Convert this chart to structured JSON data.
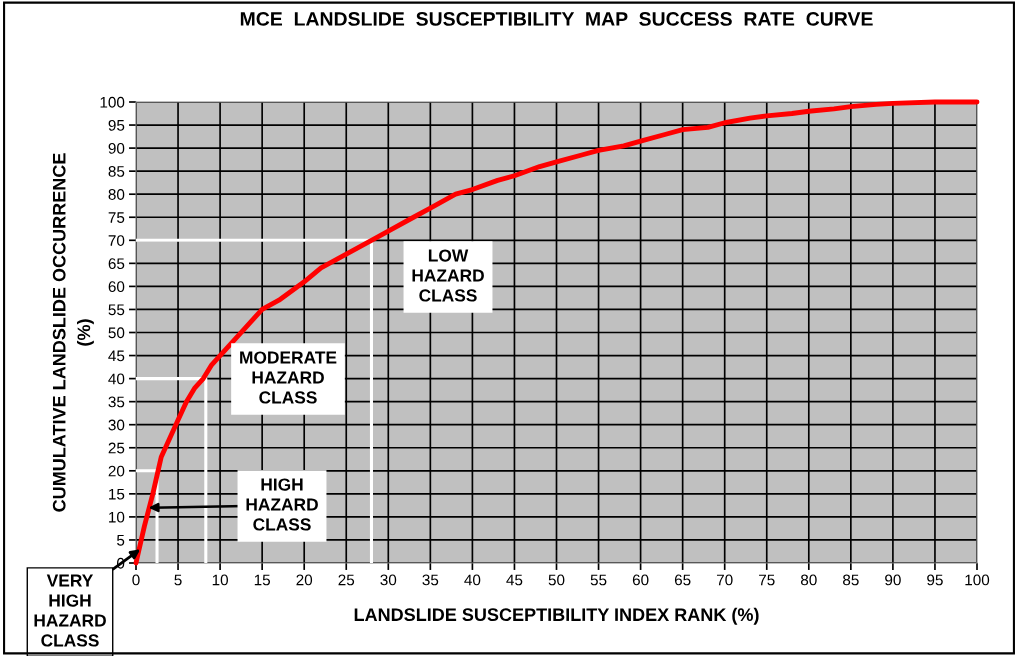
{
  "chart_data": {
    "type": "line",
    "title": "MCE  LANDSLIDE  SUSCEPTIBILITY  MAP  SUCCESS  RATE  CURVE",
    "xlabel": "LANDSLIDE SUSCEPTIBILITY INDEX RANK (%)",
    "ylabel": "CUMULATIVE LANDSLIDE OCCURRENCE\n(%)",
    "series": [
      {
        "color": "#ffffff",
        "x": [
          0,
          2.5,
          2.5
        ],
        "values": [
          20,
          20,
          0
        ]
      },
      {
        "color": "#ffffff",
        "x": [
          0,
          8.3,
          8.3
        ],
        "values": [
          40,
          40,
          0
        ]
      },
      {
        "color": "#ffffff",
        "x": [
          0,
          28,
          28
        ],
        "values": [
          70,
          70,
          0
        ]
      },
      {
        "color": "#ff0000",
        "x": [
          0,
          0.5,
          1,
          2,
          2.5,
          3,
          4,
          5,
          6,
          7,
          8,
          9,
          10,
          12,
          14,
          15,
          17,
          20,
          22,
          25,
          28,
          30,
          33,
          35,
          38,
          40,
          43,
          45,
          48,
          50,
          53,
          55,
          58,
          60,
          63,
          65,
          68,
          70,
          73,
          75,
          78,
          80,
          83,
          85,
          88,
          90,
          95,
          100
        ],
        "values": [
          0,
          4,
          8,
          15,
          19,
          23,
          27,
          31,
          35,
          38,
          40,
          43,
          45,
          49,
          53,
          55,
          57,
          61,
          64,
          67,
          70,
          72,
          75,
          77,
          80,
          81,
          83,
          84,
          86,
          87,
          88.5,
          89.5,
          90.5,
          91.5,
          93,
          94,
          94.5,
          95.5,
          96.5,
          97,
          97.5,
          98,
          98.5,
          99,
          99.5,
          99.7,
          100,
          100
        ]
      }
    ],
    "annotations": [
      {
        "text": "VERY\nHIGH\nHAZARD\nCLASS",
        "x": 0.5,
        "y": 3
      },
      {
        "text": "HIGH\nHAZARD\nCLASS",
        "x": 1.5,
        "y": 12
      },
      "MODERATE\nHAZARD\nCLASS",
      "LOW\nHAZARD\nCLASS"
    ],
    "xlim": [
      0,
      100
    ],
    "ylim": [
      0,
      100
    ],
    "xticks": [
      0,
      5,
      10,
      15,
      20,
      25,
      30,
      35,
      40,
      45,
      50,
      55,
      60,
      65,
      70,
      75,
      80,
      85,
      90,
      95,
      100
    ],
    "yticks": [
      0,
      5,
      10,
      15,
      20,
      25,
      30,
      35,
      40,
      45,
      50,
      55,
      60,
      65,
      70,
      75,
      80,
      85,
      90,
      95,
      100
    ],
    "grid": true,
    "line_style": "solid",
    "marker": "none"
  }
}
